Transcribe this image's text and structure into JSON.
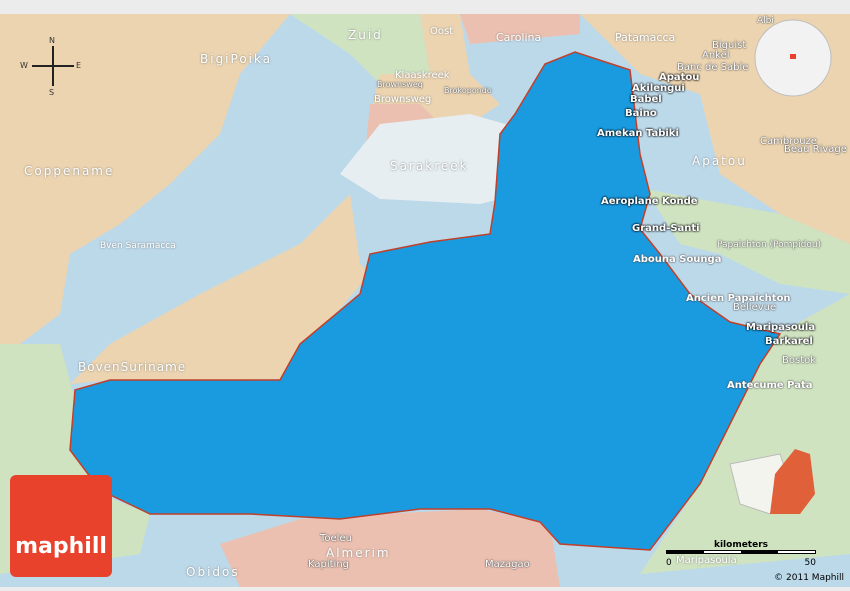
{
  "map": {
    "colors": {
      "main_region": "#1a9be0",
      "neighbor_tan": "#ecd4b0",
      "neighbor_lightblue": "#bcd9ea",
      "neighbor_green": "#cfe3c0",
      "neighbor_pink": "#ecc0b0",
      "lake": "#e6eef2",
      "border": "#c0402a",
      "logo": "#e8412c"
    },
    "compass": {
      "n": "N",
      "s": "S",
      "e": "E",
      "w": "W"
    },
    "regions": [
      "Zuid",
      "Oost",
      "Carolina",
      "Patamacca",
      "BigiPoika",
      "Klaaskreek",
      "Brownsweg",
      "Coppename",
      "Sarakreek",
      "Apatou",
      "Bven Saramacca",
      "BovenSuriname",
      "Almerim",
      "Papaichton (Pompidou)",
      "Maripasoula",
      "Brownsweg",
      "Brokopondo"
    ],
    "places": [
      "Albi",
      "Biguist",
      "Ankel",
      "Banc de Sable",
      "Apatou",
      "Akilengui",
      "Babel",
      "Baino",
      "Amekan Tabiki",
      "Cambrouze",
      "Beau Rivage",
      "Aeroplane Konde",
      "Grand-Santi",
      "Abouna Sounga",
      "Ancien Papaichton",
      "Bellevue",
      "Maripasoula",
      "Barkarel",
      "Bostok",
      "Antecume Pata",
      "Toeleu",
      "Kapiting",
      "Obidos",
      "Mazagao"
    ],
    "logo_text": "maphill",
    "scale": {
      "unit": "kilometers",
      "min": "0",
      "max": "50"
    },
    "copyright": "© 2011 Maphill"
  }
}
